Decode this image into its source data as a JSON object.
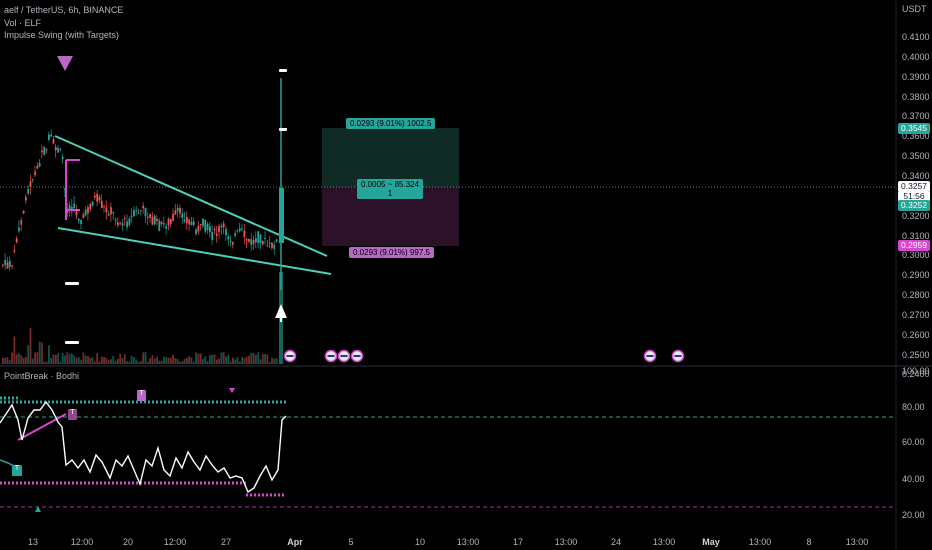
{
  "header": {
    "symbol_line": "aelf / TetherUS, 6h, BINANCE",
    "vol_line": "Vol · ELF",
    "indicator_line": "Impulse Swing (with Targets)",
    "currency": "USDT"
  },
  "price_axis": {
    "ticks": [
      "0.4100",
      "0.4000",
      "0.3900",
      "0.3800",
      "0.3700",
      "0.3600",
      "0.3500",
      "0.3400",
      "0.3300",
      "0.3200",
      "0.3100",
      "0.3000",
      "0.2900",
      "0.2800",
      "0.2700",
      "0.2600",
      "0.2500",
      "0.2400"
    ],
    "labels": {
      "target_up": "0.3545",
      "current": "0.3257",
      "countdown": "51:56",
      "last": "0.3252",
      "stop": "0.2959"
    }
  },
  "position": {
    "profit_label": "0.0293 (9.01%) 1002.5",
    "center_label_1": "0.0005 ~ 85.324",
    "center_label_2": "1",
    "loss_label": "0.0293 (9.01%) 997.5"
  },
  "watermark": "",
  "indicator": {
    "title": "PointBreak · Bodhi",
    "axis_ticks": [
      "100.00",
      "80.00",
      "60.00",
      "40.00",
      "20.00"
    ],
    "markers": [
      "T",
      "T",
      "T"
    ]
  },
  "time_axis": {
    "labels": [
      "13",
      "12:00",
      "20",
      "12:00",
      "27",
      "Apr",
      "5",
      "10",
      "13:00",
      "17",
      "13:00",
      "24",
      "13:00",
      "May",
      "13:00",
      "8",
      "13:00"
    ]
  },
  "colors": {
    "bull": "#26a69a",
    "bear": "#ef5350",
    "teal_line": "#4dd0b8",
    "magenta": "#d946d0",
    "profit_zone": "#1e4d45",
    "loss_zone": "#3d1a3a"
  }
}
